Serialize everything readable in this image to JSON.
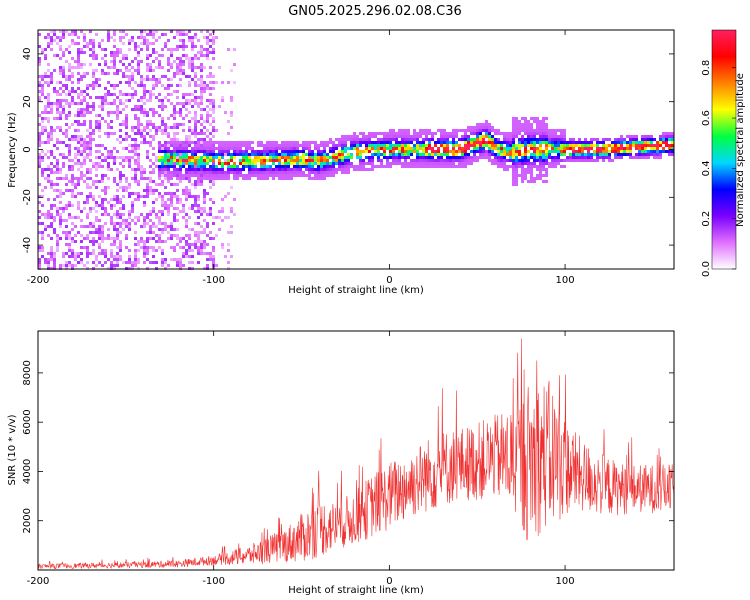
{
  "title": "GN05.2025.296.02.08.C36",
  "chart_data": [
    {
      "type": "heatmap",
      "xlabel": "Height of straight line (km)",
      "ylabel": "Frequency (Hz)",
      "xlim": [
        -200,
        162
      ],
      "ylim": [
        -50,
        50
      ],
      "xticks": [
        -200,
        -100,
        0,
        100
      ],
      "yticks": [
        -40,
        -20,
        0,
        20,
        40
      ],
      "colorbar": {
        "label": "Normalized spectral amplitude",
        "range": [
          0,
          0.95
        ],
        "ticks": [
          0.0,
          0.2,
          0.4,
          0.6,
          0.8
        ],
        "colors": [
          "#ffffff",
          "#e070ff",
          "#7a00ff",
          "#0000ff",
          "#00d8ff",
          "#00ff40",
          "#ffff00",
          "#ff8000",
          "#ff0000",
          "#ff2060"
        ]
      },
      "ridge": {
        "x": [
          -130,
          -100,
          -80,
          -50,
          -40,
          -20,
          0,
          20,
          40,
          55,
          62,
          70,
          80,
          90,
          100,
          120,
          140,
          162
        ],
        "frequency": [
          -4,
          -5,
          -5,
          -4,
          -5,
          -1,
          0,
          0,
          0,
          4,
          0,
          -1,
          0,
          0,
          0,
          0,
          1,
          2
        ]
      },
      "grid": false
    },
    {
      "type": "line",
      "xlabel": "Height of straight line (km)",
      "ylabel": "SNR (10 * v/v)",
      "xlim": [
        -200,
        162
      ],
      "ylim": [
        0,
        9700
      ],
      "xticks": [
        -200,
        -100,
        0,
        100
      ],
      "yticks": [
        2000,
        4000,
        6000,
        8000
      ],
      "series": [
        {
          "color": "#f03030",
          "envelope": {
            "x": [
              -200,
              -150,
              -120,
              -100,
              -80,
              -60,
              -50,
              -40,
              -30,
              -20,
              -10,
              0,
              10,
              20,
              30,
              40,
              50,
              60,
              70,
              75,
              80,
              85,
              90,
              95,
              100,
              110,
              120,
              130,
              140,
              150,
              162
            ],
            "mean": [
              150,
              200,
              250,
              400,
              600,
              1000,
              1300,
              1700,
              1800,
              2100,
              2600,
              3000,
              3400,
              3800,
              4100,
              4300,
              4400,
              4600,
              4500,
              4300,
              4400,
              4600,
              4700,
              4500,
              4200,
              3800,
              3500,
              3300,
              3300,
              3300,
              3300
            ],
            "spread": [
              100,
              120,
              150,
              200,
              400,
              700,
              1000,
              1200,
              1000,
              1100,
              1300,
              1400,
              1400,
              1500,
              1600,
              1500,
              1600,
              1700,
              2200,
              2800,
              3400,
              3200,
              3100,
              2800,
              2000,
              1500,
              1300,
              1100,
              1000,
              1000,
              1000
            ]
          }
        }
      ],
      "grid": false
    }
  ]
}
